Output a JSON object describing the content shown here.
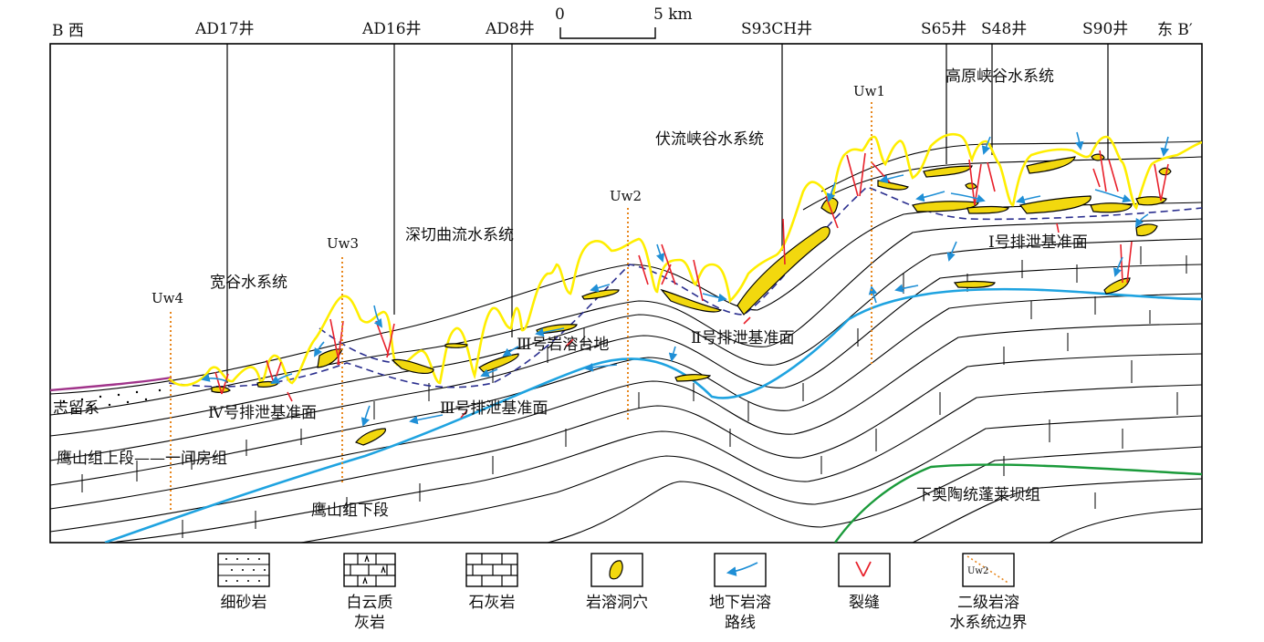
{
  "header": {
    "west_label": "B 西",
    "east_label": "东 B′",
    "scale_zero": "0",
    "scale_end": "5 km"
  },
  "wells": [
    "AD17井",
    "AD16井",
    "AD8井",
    "S93CH井",
    "S65井",
    "S48井",
    "S90井"
  ],
  "boundaries": [
    "Uw1",
    "Uw2",
    "Uw3",
    "Uw4"
  ],
  "systems": {
    "plateau_canyon": "高原峡谷水系统",
    "subsurface_canyon": "伏流峡谷水系统",
    "incised_meander": "深切曲流水系统",
    "wide_valley": "宽谷水系统"
  },
  "base_levels": {
    "level1": "Ⅰ号排泄基准面",
    "level2": "Ⅱ号排泄基准面",
    "level3a": "Ⅲ号岩溶台地",
    "level3": "Ⅲ号排泄基准面",
    "level4": "Ⅳ号排泄基准面"
  },
  "strata": {
    "silurian": "志留系",
    "upper_yingshan": "鹰山组上段——一间房组",
    "lower_yingshan": "鹰山组下段",
    "penglaiba": "下奥陶统蓬莱坝组"
  },
  "legend": [
    {
      "icon": "fine-sandstone",
      "label": "细砂岩"
    },
    {
      "icon": "dolomitic-limestone",
      "label": "白云质\n灰岩"
    },
    {
      "icon": "limestone",
      "label": "石灰岩"
    },
    {
      "icon": "karst-cave",
      "label": "岩溶洞穴"
    },
    {
      "icon": "karst-route",
      "label": "地下岩溶\n路线"
    },
    {
      "icon": "fracture",
      "label": "裂缝"
    },
    {
      "icon": "boundary",
      "label": "二级岩溶\n水系统边界",
      "icon_text": "Uw2"
    }
  ],
  "colors": {
    "surface": "#ffee00",
    "cave_fill": "#f2d80e",
    "karst_route": "#1fa3e0",
    "flow_arrow": "#1f8fd6",
    "fracture": "#e8212b",
    "boundary": "#e8871e",
    "dashed_level": "#2b2f8f",
    "silurian_top": "#a0338a",
    "penglaiba_top": "#1a9a3a"
  }
}
